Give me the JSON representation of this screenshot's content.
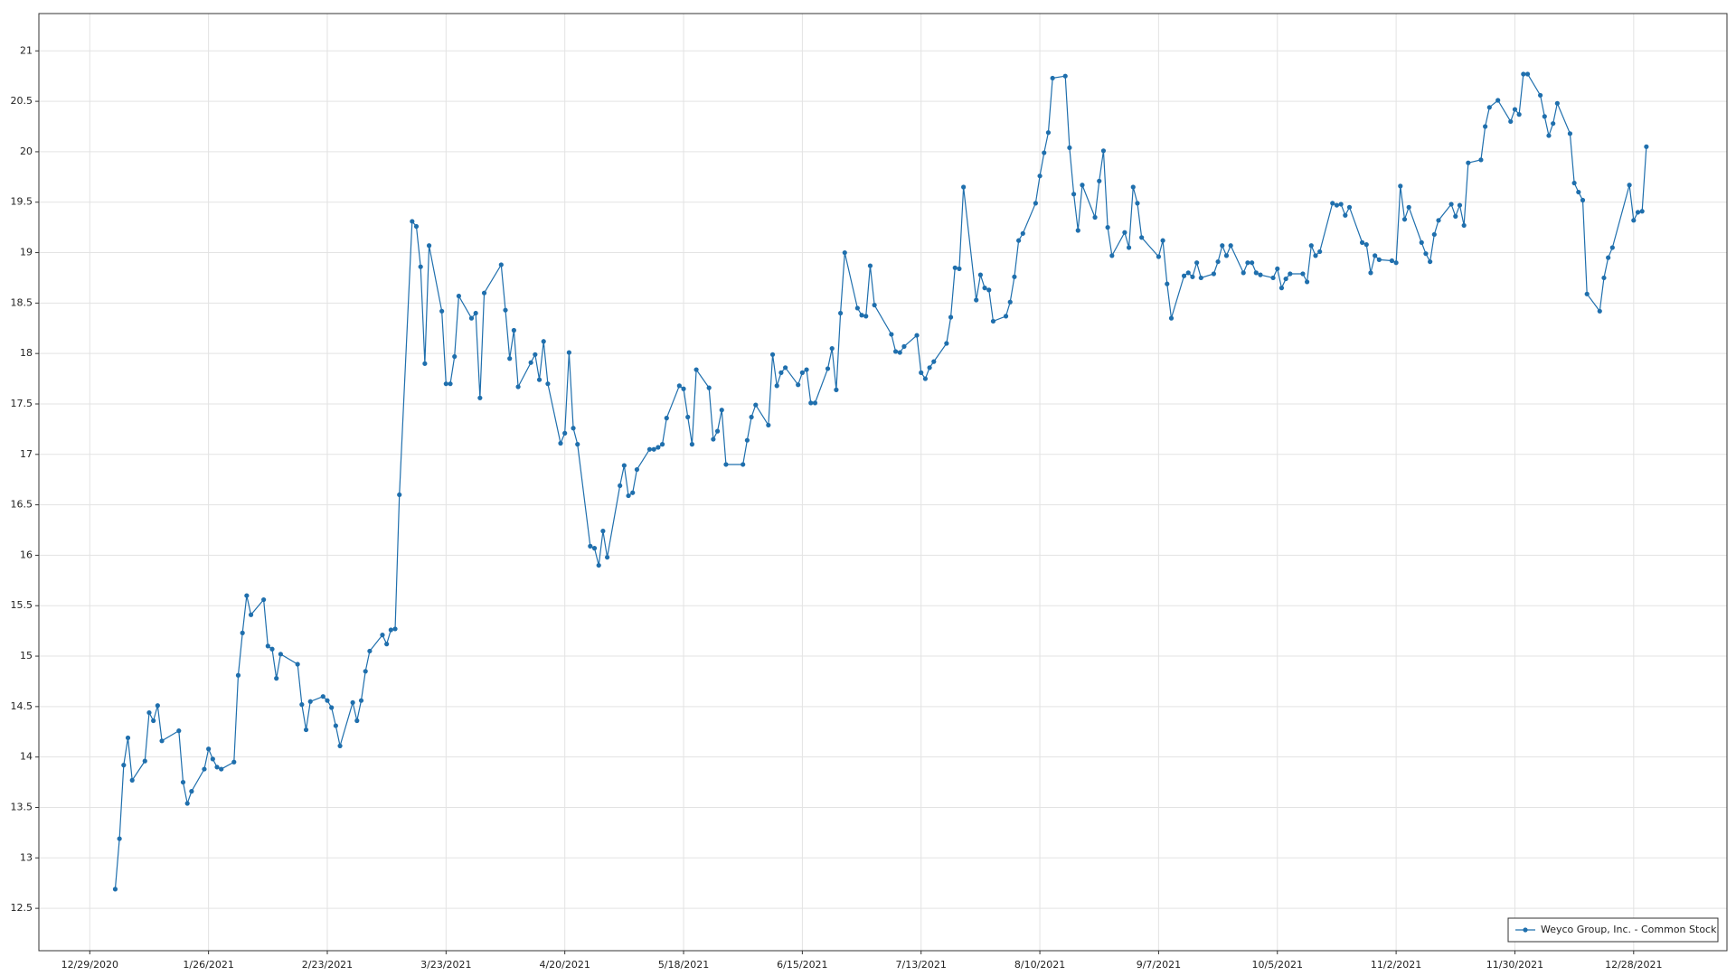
{
  "chart_data": {
    "type": "line",
    "series": [
      {
        "name": "Weyco Group, Inc. - Common Stock",
        "color": "#1f6fad",
        "values": [
          12.69,
          13.19,
          13.92,
          14.19,
          13.77,
          13.96,
          14.44,
          14.36,
          14.51,
          14.16,
          14.26,
          13.75,
          13.54,
          13.66,
          13.88,
          14.08,
          13.98,
          13.9,
          13.88,
          13.95,
          14.81,
          15.23,
          15.6,
          15.41,
          15.56,
          15.1,
          15.07,
          14.78,
          15.02,
          14.92,
          14.52,
          14.27,
          14.55,
          14.6,
          14.56,
          14.49,
          14.31,
          14.11,
          14.54,
          14.36,
          14.56,
          14.85,
          15.05,
          15.21,
          15.12,
          15.26,
          15.27,
          16.6,
          19.31,
          19.26,
          18.86,
          17.9,
          19.07,
          18.42,
          17.7,
          17.7,
          17.97,
          18.57,
          18.35,
          18.4,
          17.56,
          18.6,
          18.88,
          18.43,
          17.95,
          18.23,
          17.67,
          17.91,
          17.99,
          17.74,
          18.12,
          17.7,
          17.11,
          17.21,
          18.01,
          17.26,
          17.1,
          16.09,
          16.07,
          15.9,
          16.24,
          15.98,
          16.69,
          16.89,
          16.59,
          16.62,
          16.85,
          17.05,
          17.05,
          17.07,
          17.1,
          17.36,
          17.68,
          17.65,
          17.37,
          17.1,
          17.84,
          17.66,
          17.15,
          17.23,
          17.44,
          16.9,
          16.9,
          17.14,
          17.37,
          17.49,
          17.29,
          17.99,
          17.68,
          17.81,
          17.86,
          17.69,
          17.81,
          17.84,
          17.51,
          17.51,
          17.85,
          18.05,
          17.64,
          18.4,
          19.0,
          18.45,
          18.38,
          18.37,
          18.87,
          18.48,
          18.19,
          18.02,
          18.01,
          18.07,
          18.18,
          17.81,
          17.75,
          17.86,
          17.92,
          18.1,
          18.36,
          18.85,
          18.84,
          19.65,
          18.53,
          18.78,
          18.65,
          18.63,
          18.32,
          18.37,
          18.51,
          18.76,
          19.12,
          19.19,
          19.49,
          19.76,
          19.99,
          20.19,
          20.73,
          20.75,
          20.04,
          19.58,
          19.22,
          19.67,
          19.35,
          19.71,
          20.01,
          19.25,
          18.97,
          19.2,
          19.05,
          19.65,
          19.49,
          19.15,
          18.96,
          19.12,
          18.69,
          18.35,
          18.77,
          18.8,
          18.76,
          18.9,
          18.75,
          18.79,
          18.91,
          19.07,
          18.97,
          19.07,
          18.8,
          18.9,
          18.9,
          18.8,
          18.78,
          18.75,
          18.84,
          18.65,
          18.74,
          18.79,
          18.79,
          18.71,
          19.07,
          18.97,
          19.01,
          19.49,
          19.47,
          19.48,
          19.37,
          19.45,
          19.1,
          19.08,
          18.8,
          18.97,
          18.93,
          18.92,
          18.9,
          19.66,
          19.33,
          19.45,
          19.1,
          18.99,
          18.91,
          19.18,
          19.32,
          19.48,
          19.36,
          19.47,
          19.27,
          19.89,
          19.92,
          20.25,
          20.44,
          20.51,
          20.3,
          20.42,
          20.37,
          20.77,
          20.77,
          20.56,
          20.35,
          20.16,
          20.28,
          20.48,
          20.18,
          19.69,
          19.6,
          19.52,
          18.59,
          18.42,
          18.75,
          18.95,
          19.05,
          19.67,
          19.32,
          19.4,
          19.41,
          20.05
        ]
      }
    ],
    "x": [
      "1/4/2021",
      "1/5/2021",
      "1/6/2021",
      "1/7/2021",
      "1/8/2021",
      "1/11/2021",
      "1/12/2021",
      "1/13/2021",
      "1/14/2021",
      "1/15/2021",
      "1/19/2021",
      "1/20/2021",
      "1/21/2021",
      "1/22/2021",
      "1/25/2021",
      "1/26/2021",
      "1/27/2021",
      "1/28/2021",
      "1/29/2021",
      "2/1/2021",
      "2/2/2021",
      "2/3/2021",
      "2/4/2021",
      "2/5/2021",
      "2/8/2021",
      "2/9/2021",
      "2/10/2021",
      "2/11/2021",
      "2/12/2021",
      "2/16/2021",
      "2/17/2021",
      "2/18/2021",
      "2/19/2021",
      "2/22/2021",
      "2/23/2021",
      "2/24/2021",
      "2/25/2021",
      "2/26/2021",
      "3/1/2021",
      "3/2/2021",
      "3/3/2021",
      "3/4/2021",
      "3/5/2021",
      "3/8/2021",
      "3/9/2021",
      "3/10/2021",
      "3/11/2021",
      "3/12/2021",
      "3/15/2021",
      "3/16/2021",
      "3/17/2021",
      "3/18/2021",
      "3/19/2021",
      "3/22/2021",
      "3/23/2021",
      "3/24/2021",
      "3/25/2021",
      "3/26/2021",
      "3/29/2021",
      "3/30/2021",
      "3/31/2021",
      "4/1/2021",
      "4/5/2021",
      "4/6/2021",
      "4/7/2021",
      "4/8/2021",
      "4/9/2021",
      "4/12/2021",
      "4/13/2021",
      "4/14/2021",
      "4/15/2021",
      "4/16/2021",
      "4/19/2021",
      "4/20/2021",
      "4/21/2021",
      "4/22/2021",
      "4/23/2021",
      "4/26/2021",
      "4/27/2021",
      "4/28/2021",
      "4/29/2021",
      "4/30/2021",
      "5/3/2021",
      "5/4/2021",
      "5/5/2021",
      "5/6/2021",
      "5/7/2021",
      "5/10/2021",
      "5/11/2021",
      "5/12/2021",
      "5/13/2021",
      "5/14/2021",
      "5/17/2021",
      "5/18/2021",
      "5/19/2021",
      "5/20/2021",
      "5/21/2021",
      "5/24/2021",
      "5/25/2021",
      "5/26/2021",
      "5/27/2021",
      "5/28/2021",
      "6/1/2021",
      "6/2/2021",
      "6/3/2021",
      "6/4/2021",
      "6/7/2021",
      "6/8/2021",
      "6/9/2021",
      "6/10/2021",
      "6/11/2021",
      "6/14/2021",
      "6/15/2021",
      "6/16/2021",
      "6/17/2021",
      "6/18/2021",
      "6/21/2021",
      "6/22/2021",
      "6/23/2021",
      "6/24/2021",
      "6/25/2021",
      "6/28/2021",
      "6/29/2021",
      "6/30/2021",
      "7/1/2021",
      "7/2/2021",
      "7/6/2021",
      "7/7/2021",
      "7/8/2021",
      "7/9/2021",
      "7/12/2021",
      "7/13/2021",
      "7/14/2021",
      "7/15/2021",
      "7/16/2021",
      "7/19/2021",
      "7/20/2021",
      "7/21/2021",
      "7/22/2021",
      "7/23/2021",
      "7/26/2021",
      "7/27/2021",
      "7/28/2021",
      "7/29/2021",
      "7/30/2021",
      "8/2/2021",
      "8/3/2021",
      "8/4/2021",
      "8/5/2021",
      "8/6/2021",
      "8/9/2021",
      "8/10/2021",
      "8/11/2021",
      "8/12/2021",
      "8/13/2021",
      "8/16/2021",
      "8/17/2021",
      "8/18/2021",
      "8/19/2021",
      "8/20/2021",
      "8/23/2021",
      "8/24/2021",
      "8/25/2021",
      "8/26/2021",
      "8/27/2021",
      "8/30/2021",
      "8/31/2021",
      "9/1/2021",
      "9/2/2021",
      "9/3/2021",
      "9/7/2021",
      "9/8/2021",
      "9/9/2021",
      "9/10/2021",
      "9/13/2021",
      "9/14/2021",
      "9/15/2021",
      "9/16/2021",
      "9/17/2021",
      "9/20/2021",
      "9/21/2021",
      "9/22/2021",
      "9/23/2021",
      "9/24/2021",
      "9/27/2021",
      "9/28/2021",
      "9/29/2021",
      "9/30/2021",
      "10/1/2021",
      "10/4/2021",
      "10/5/2021",
      "10/6/2021",
      "10/7/2021",
      "10/8/2021",
      "10/11/2021",
      "10/12/2021",
      "10/13/2021",
      "10/14/2021",
      "10/15/2021",
      "10/18/2021",
      "10/19/2021",
      "10/20/2021",
      "10/21/2021",
      "10/22/2021",
      "10/25/2021",
      "10/26/2021",
      "10/27/2021",
      "10/28/2021",
      "10/29/2021",
      "11/1/2021",
      "11/2/2021",
      "11/3/2021",
      "11/4/2021",
      "11/5/2021",
      "11/8/2021",
      "11/9/2021",
      "11/10/2021",
      "11/11/2021",
      "11/12/2021",
      "11/15/2021",
      "11/16/2021",
      "11/17/2021",
      "11/18/2021",
      "11/19/2021",
      "11/22/2021",
      "11/23/2021",
      "11/24/2021",
      "11/26/2021",
      "11/29/2021",
      "11/30/2021",
      "12/1/2021",
      "12/2/2021",
      "12/3/2021",
      "12/6/2021",
      "12/7/2021",
      "12/8/2021",
      "12/9/2021",
      "12/10/2021",
      "12/13/2021",
      "12/14/2021",
      "12/15/2021",
      "12/16/2021",
      "12/17/2021",
      "12/20/2021",
      "12/21/2021",
      "12/22/2021",
      "12/23/2021",
      "12/27/2021",
      "12/28/2021",
      "12/29/2021",
      "12/30/2021",
      "12/31/2021"
    ],
    "xlim": [
      "12/17/2020",
      "1/19/2022"
    ],
    "xticks": [
      "12/29/2020",
      "1/26/2021",
      "2/23/2021",
      "3/23/2021",
      "4/20/2021",
      "5/18/2021",
      "6/15/2021",
      "7/13/2021",
      "8/10/2021",
      "9/7/2021",
      "10/5/2021",
      "11/2/2021",
      "11/30/2021",
      "12/28/2021"
    ],
    "ylim": [
      12.08,
      21.37
    ],
    "yticks": [
      12.5,
      13,
      13.5,
      14,
      14.5,
      15,
      15.5,
      16,
      16.5,
      17,
      17.5,
      18,
      18.5,
      19,
      19.5,
      20,
      20.5,
      21
    ],
    "grid": true,
    "markers": true,
    "legend": "lower right"
  }
}
